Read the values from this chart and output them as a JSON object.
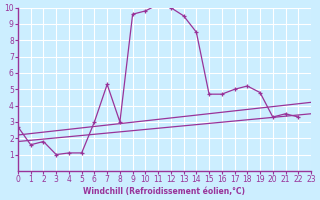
{
  "bg_color": "#cceeff",
  "grid_color": "#ffffff",
  "line_color": "#993399",
  "xlabel": "Windchill (Refroidissement éolien,°C)",
  "xlim": [
    0,
    23
  ],
  "ylim": [
    0,
    10
  ],
  "xticks": [
    0,
    1,
    2,
    3,
    4,
    5,
    6,
    7,
    8,
    9,
    10,
    11,
    12,
    13,
    14,
    15,
    16,
    17,
    18,
    19,
    20,
    21,
    22,
    23
  ],
  "yticks": [
    1,
    2,
    3,
    4,
    5,
    6,
    7,
    8,
    9,
    10
  ],
  "curve1_x": [
    0,
    1,
    2,
    3,
    4,
    5,
    6,
    7,
    8,
    9,
    10,
    11,
    12,
    13,
    14,
    15,
    16,
    17,
    18,
    19,
    20,
    21,
    22
  ],
  "curve1_y": [
    2.7,
    1.6,
    1.8,
    1.0,
    1.1,
    1.1,
    3.0,
    5.3,
    3.0,
    9.6,
    9.8,
    10.2,
    10.0,
    9.5,
    8.5,
    4.7,
    4.7,
    5.0,
    5.2,
    4.8,
    3.3,
    3.5,
    3.3
  ],
  "line2_x": [
    0,
    23
  ],
  "line2_y": [
    1.8,
    3.5
  ],
  "line3_x": [
    0,
    23
  ],
  "line3_y": [
    2.2,
    4.2
  ],
  "marker": "P"
}
